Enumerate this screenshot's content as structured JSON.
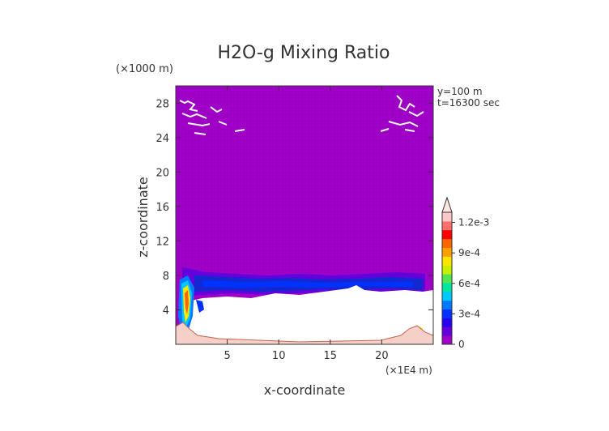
{
  "chart_data": {
    "type": "heatmap",
    "title": "H2O-g Mixing Ratio",
    "xlabel": "x-coordinate",
    "ylabel": "z-coordinate",
    "x_unit": "(×1E4 m)",
    "y_unit": "(×1000 m)",
    "annotations": [
      "y=100 m",
      "t=16300 sec"
    ],
    "xlim": [
      0,
      25
    ],
    "ylim": [
      0,
      30
    ],
    "xticks": [
      5,
      10,
      15,
      20
    ],
    "yticks": [
      4,
      8,
      12,
      16,
      20,
      24,
      28
    ],
    "colorbar": {
      "vmin": 0,
      "vmax": 0.0013,
      "tick_values": [
        0,
        0.0003,
        0.0006,
        0.0009,
        0.0012
      ],
      "tick_labels": [
        "0",
        "3e-4",
        "6e-4",
        "9e-4",
        "1.2e-3"
      ],
      "extend": "max",
      "colors": [
        "#a000c8",
        "#6400dc",
        "#2a00f0",
        "#0032ff",
        "#0078ff",
        "#00c8ff",
        "#00e6a0",
        "#50e650",
        "#c8f000",
        "#ffe600",
        "#ffa000",
        "#ff6400",
        "#ff0000",
        "#ff6e6e",
        "#ffc8c8"
      ]
    },
    "fields": {
      "background_value": 0.0,
      "dry_region_color": "#ffffff"
    }
  },
  "colors": {
    "background_purple": "#a000c8",
    "band_dark_blue": "#1428d2",
    "surface_layer": "#f5d0c8"
  }
}
